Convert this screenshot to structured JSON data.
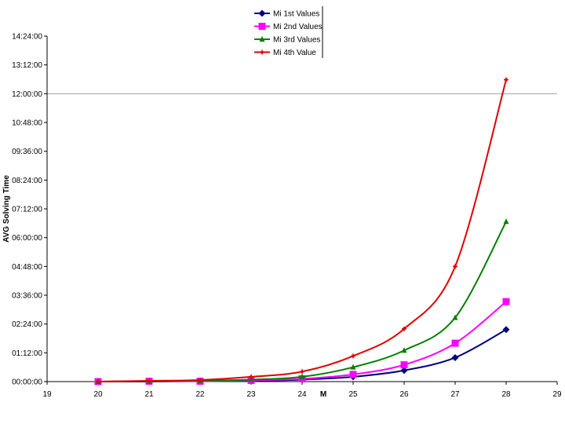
{
  "chart_data": {
    "type": "line",
    "title": "",
    "xlabel": "M",
    "ylabel": "AVG Solving Time",
    "xlim": [
      19,
      29
    ],
    "x_ticks": [
      "19",
      "20",
      "21",
      "22",
      "23",
      "24",
      "25",
      "26",
      "27",
      "28",
      "29"
    ],
    "ylim_minutes": [
      0,
      864
    ],
    "y_ticks": [
      "00:00:00",
      "01:12:00",
      "02:24:00",
      "03:36:00",
      "04:48:00",
      "06:00:00",
      "07:12:00",
      "08:24:00",
      "09:36:00",
      "10:48:00",
      "12:00:00",
      "13:12:00",
      "14:24:00"
    ],
    "gridlines": [
      "12:00:00"
    ],
    "legend_position": "top",
    "x": [
      20,
      21,
      22,
      23,
      24,
      25,
      26,
      27,
      28
    ],
    "series": [
      {
        "name": "Mi 1st Values",
        "color": "#000080",
        "marker": "diamond",
        "values": [
          "00:00:00",
          "00:00:00",
          "00:01:00",
          "00:02:00",
          "00:05:00",
          "00:12:00",
          "00:28:00",
          "01:00:00",
          "02:10:00"
        ]
      },
      {
        "name": "Mi 2nd Values",
        "color": "#ff00ff",
        "marker": "square",
        "values": [
          "00:00:00",
          "00:01:00",
          "00:01:00",
          "00:03:00",
          "00:07:00",
          "00:18:00",
          "00:42:00",
          "01:36:00",
          "03:20:00"
        ]
      },
      {
        "name": "Mi 3rd Values",
        "color": "#008000",
        "marker": "triangle",
        "values": [
          "00:00:00",
          "00:01:00",
          "00:02:00",
          "00:05:00",
          "00:12:00",
          "00:36:00",
          "01:18:00",
          "02:40:00",
          "06:40:00"
        ]
      },
      {
        "name": "Mi 4th Value",
        "color": "#e00000",
        "marker": "star",
        "values": [
          "00:00:00",
          "00:02:00",
          "00:04:00",
          "00:12:00",
          "00:25:00",
          "01:04:00",
          "02:12:00",
          "04:48:00",
          "12:35:00"
        ]
      }
    ]
  }
}
